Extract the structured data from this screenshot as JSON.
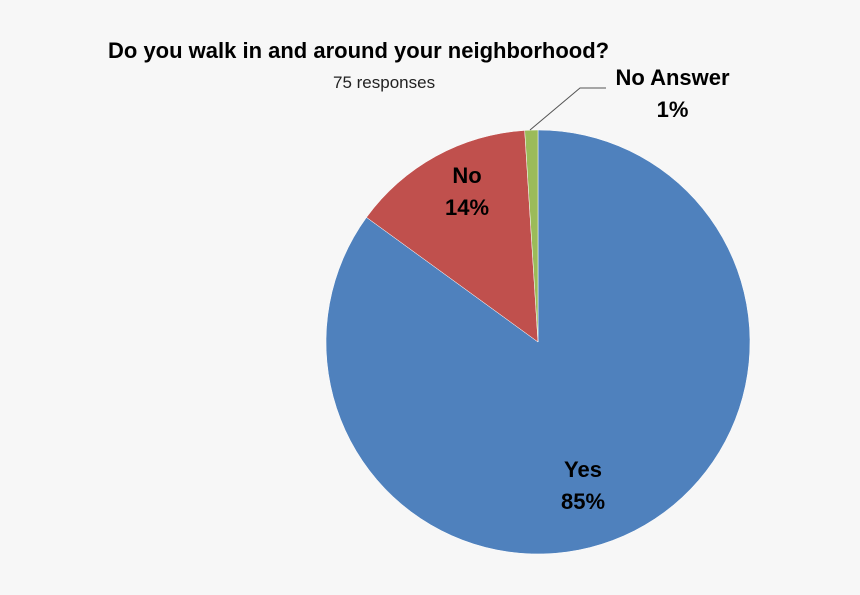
{
  "chart_data": {
    "type": "pie",
    "title": "Do you walk in and around your neighborhood?",
    "subtitle": "75 responses",
    "categories": [
      "Yes",
      "No",
      "No Answer"
    ],
    "values": [
      85,
      14,
      1
    ],
    "unit": "%",
    "colors": [
      "#4f81bd",
      "#c0504d",
      "#9bbb59"
    ],
    "labels": [
      {
        "name": "Yes",
        "pct": "85%"
      },
      {
        "name": "No",
        "pct": "14%"
      },
      {
        "name": "No Answer",
        "pct": "1%"
      }
    ],
    "start_angle": "top, clockwise",
    "legend": "none (data labels)"
  }
}
